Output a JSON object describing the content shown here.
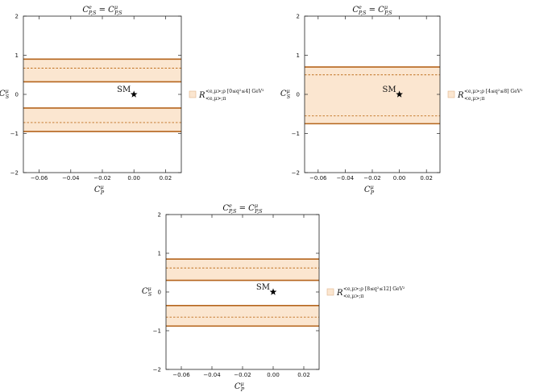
{
  "chart_data": [
    {
      "type": "area",
      "title": {
        "main": "C",
        "sup_left": "e",
        "sub_left": "P,S",
        "eq": " = C",
        "sup_right": "μ",
        "sub_right": "P,S"
      },
      "xlabel": {
        "main": "C",
        "sup": "μ",
        "sub": "P"
      },
      "ylabel": {
        "main": "C",
        "sup": "μ",
        "sub": "S"
      },
      "xlim": [
        -0.07,
        0.03
      ],
      "ylim": [
        -2,
        2
      ],
      "x_ticks": [
        -0.06,
        -0.04,
        -0.02,
        0.0,
        0.02
      ],
      "x_tick_labels": [
        "−0.06",
        "−0.04",
        "−0.02",
        "0.00",
        "0.02"
      ],
      "y_ticks": [
        -2,
        -1,
        0,
        1,
        2
      ],
      "y_tick_labels": [
        "−2",
        "−1",
        "0",
        "1",
        "2"
      ],
      "bands": [
        {
          "y_low": 0.32,
          "y_high": 0.9,
          "y_central": 0.67
        },
        {
          "y_low": -0.95,
          "y_high": -0.35,
          "y_central": -0.72
        }
      ],
      "sm_point": {
        "x": 0.0,
        "y": 0.0,
        "label": "SM"
      },
      "legend": {
        "main": "R",
        "sup": "<e,μ>;ρ",
        "sub": "<e,μ>;π",
        "range": "[0≤q²≤4]",
        "unit": " GeV²",
        "placement": "right"
      }
    },
    {
      "type": "area",
      "title": {
        "main": "C",
        "sup_left": "e",
        "sub_left": "P,S",
        "eq": " = C",
        "sup_right": "μ",
        "sub_right": "P,S"
      },
      "xlabel": {
        "main": "C",
        "sup": "μ",
        "sub": "P"
      },
      "ylabel": {
        "main": "C",
        "sup": "μ",
        "sub": "S"
      },
      "xlim": [
        -0.07,
        0.03
      ],
      "ylim": [
        -2,
        2
      ],
      "x_ticks": [
        -0.06,
        -0.04,
        -0.02,
        0.0,
        0.02
      ],
      "x_tick_labels": [
        "−0.06",
        "−0.04",
        "−0.02",
        "0.00",
        "0.02"
      ],
      "y_ticks": [
        -2,
        -1,
        0,
        1,
        2
      ],
      "y_tick_labels": [
        "−2",
        "−1",
        "0",
        "1",
        "2"
      ],
      "bands": [
        {
          "y_low": -0.75,
          "y_high": 0.7,
          "y_central_upper": 0.5,
          "y_central_lower": -0.55
        }
      ],
      "sm_point": {
        "x": 0.0,
        "y": 0.0,
        "label": "SM"
      },
      "legend": {
        "main": "R",
        "sup": "<e,μ>;ρ",
        "sub": "<e,μ>;π",
        "range": "[4≤q²≤8]",
        "unit": " GeV²",
        "placement": "right"
      }
    },
    {
      "type": "area",
      "title": {
        "main": "C",
        "sup_left": "e",
        "sub_left": "P,S",
        "eq": " = C",
        "sup_right": "μ",
        "sub_right": "P,S"
      },
      "xlabel": {
        "main": "C",
        "sup": "μ",
        "sub": "P"
      },
      "ylabel": {
        "main": "C",
        "sup": "μ",
        "sub": "S"
      },
      "xlim": [
        -0.07,
        0.03
      ],
      "ylim": [
        -2,
        2
      ],
      "x_ticks": [
        -0.06,
        -0.04,
        -0.02,
        0.0,
        0.02
      ],
      "x_tick_labels": [
        "−0.06",
        "−0.04",
        "−0.02",
        "0.00",
        "0.02"
      ],
      "y_ticks": [
        -2,
        -1,
        0,
        1,
        2
      ],
      "y_tick_labels": [
        "−2",
        "−1",
        "0",
        "1",
        "2"
      ],
      "bands": [
        {
          "y_low": 0.3,
          "y_high": 0.85,
          "y_central": 0.62
        },
        {
          "y_low": -0.88,
          "y_high": -0.35,
          "y_central": -0.65
        }
      ],
      "sm_point": {
        "x": 0.0,
        "y": 0.0,
        "label": "SM"
      },
      "legend": {
        "main": "R",
        "sup": "<e,μ>;ρ",
        "sub": "<e,μ>;π",
        "range": "[8≤q²≤12]",
        "unit": " GeV²",
        "placement": "right"
      }
    }
  ],
  "colors": {
    "band_fill": "#fbe6d0",
    "band_edge": "#b5651d",
    "central_line": "#c0701f",
    "axis": "#222222"
  }
}
